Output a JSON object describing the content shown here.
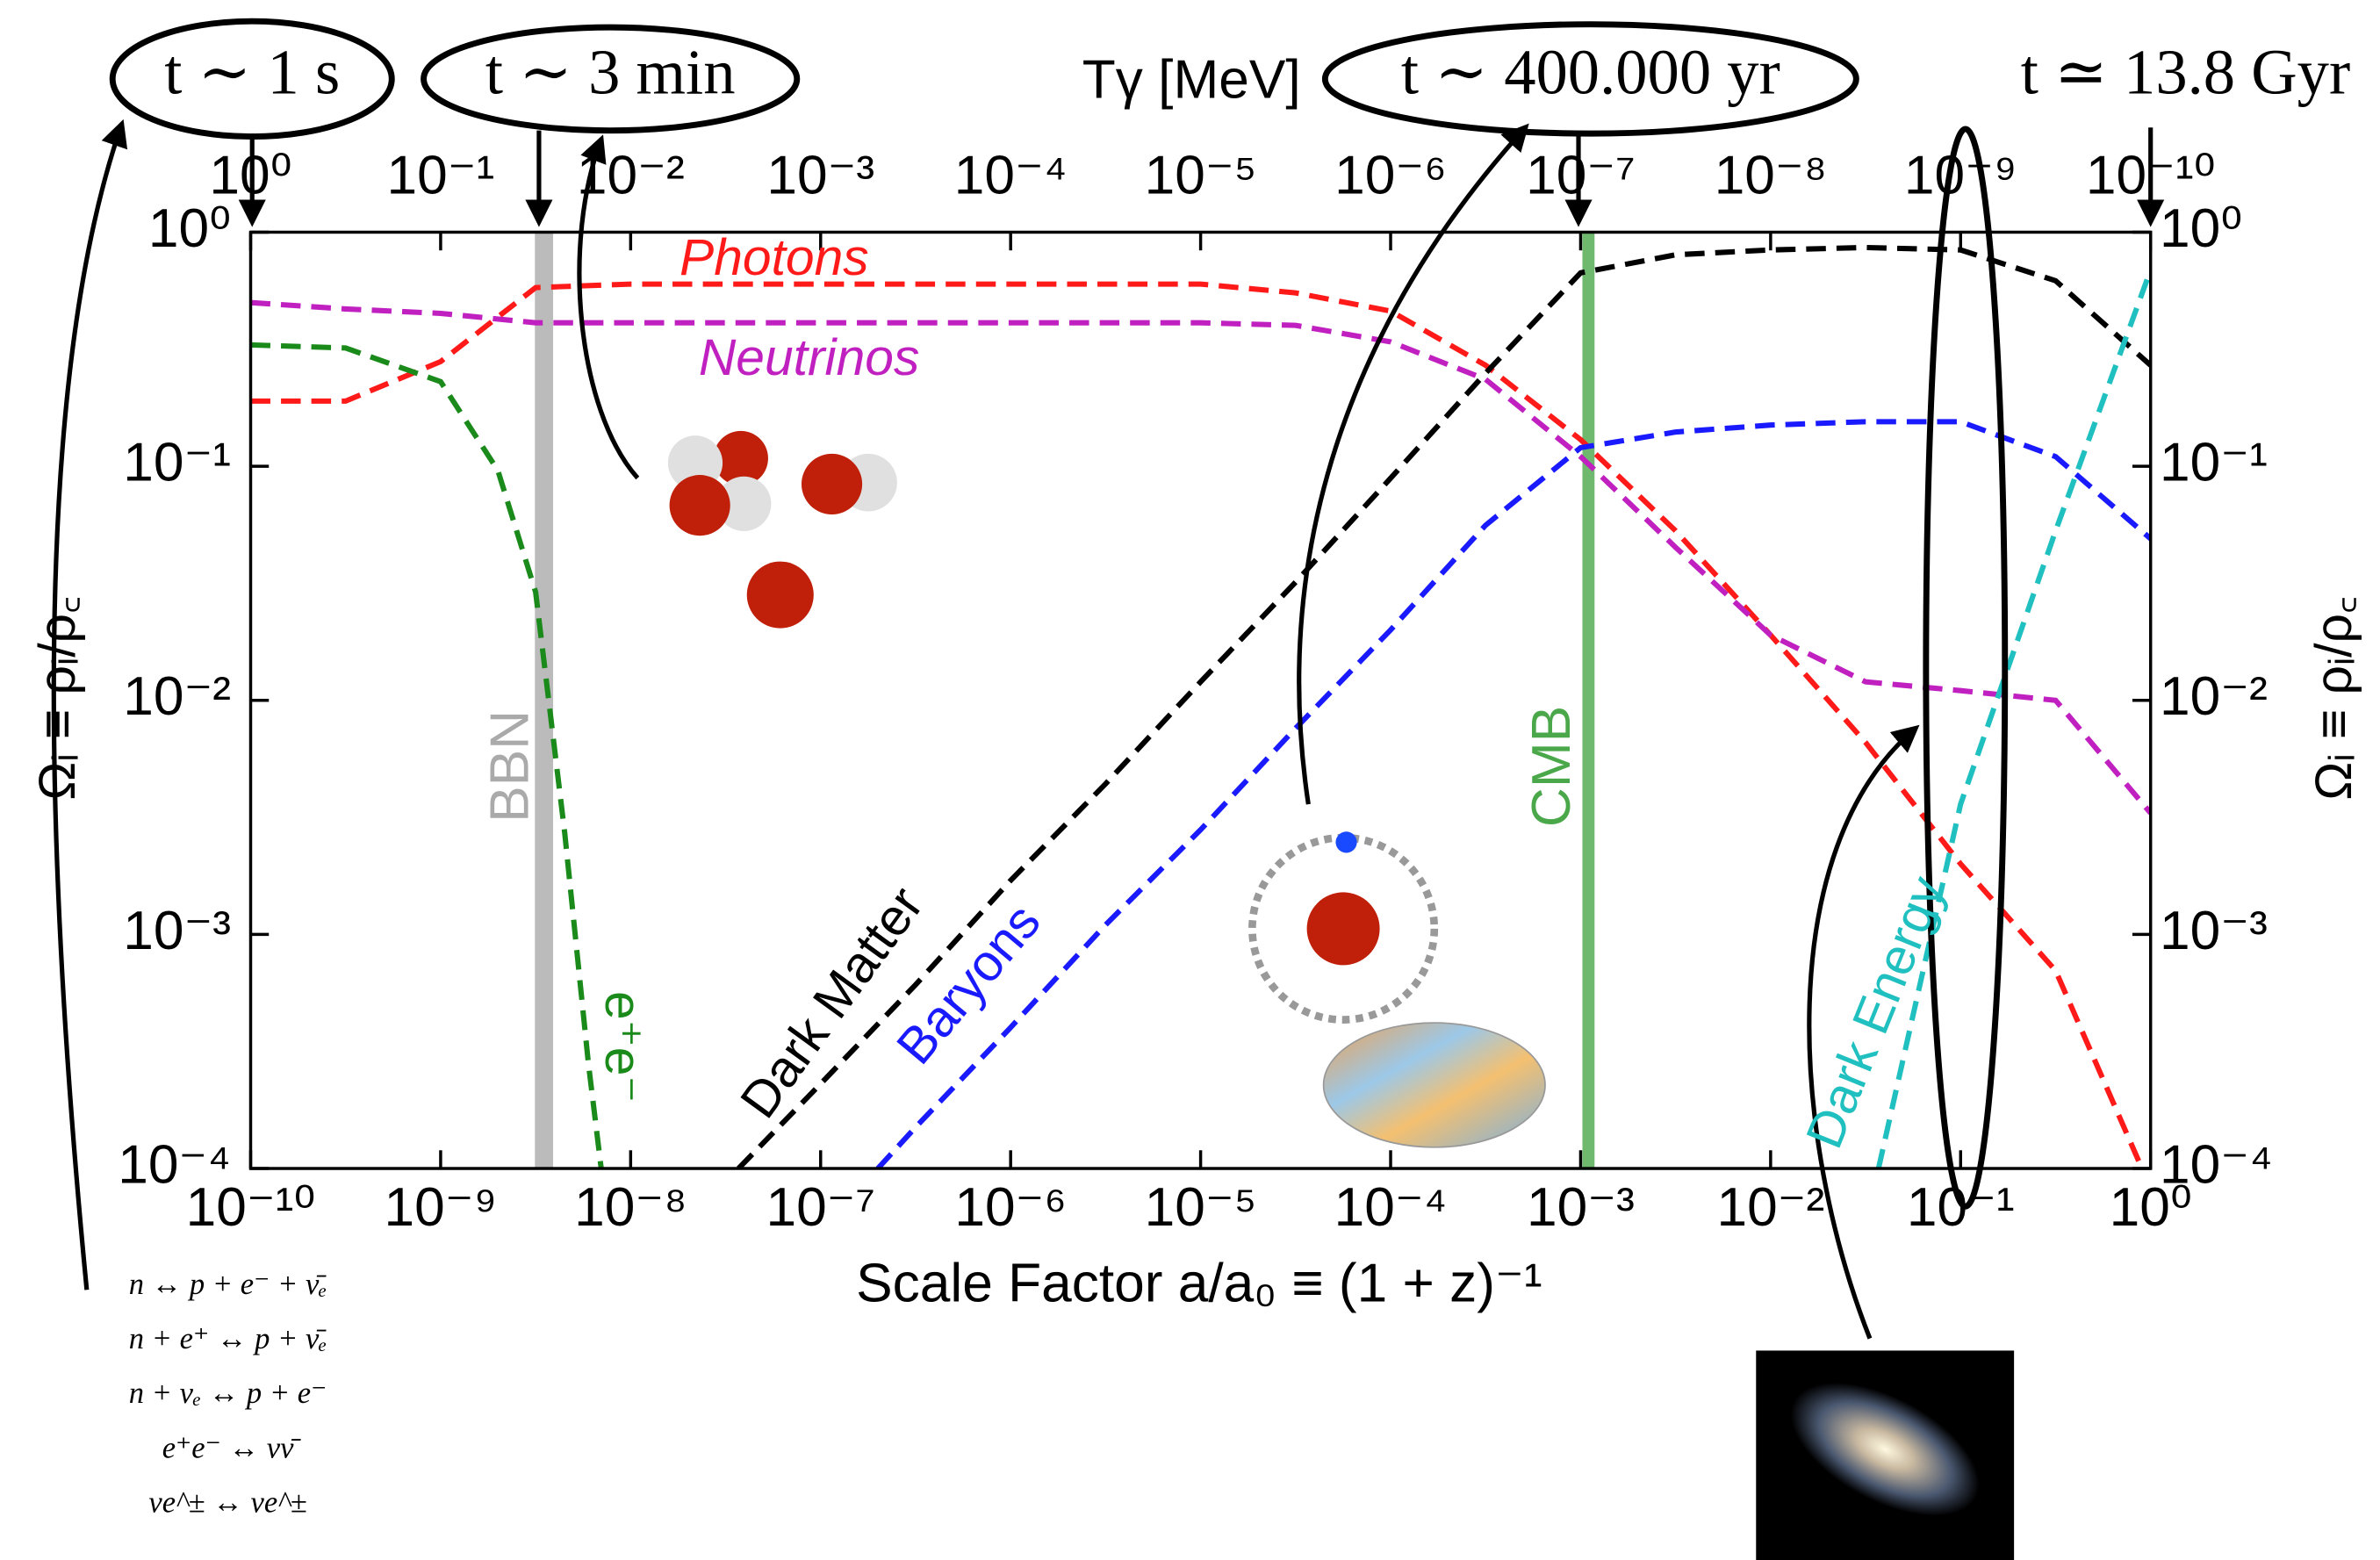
{
  "chart_data": {
    "type": "line",
    "xlabel": "Scale Factor a/a₀ ≡ (1 + z)⁻¹",
    "ylabel": "Ωᵢ ≡ ρᵢ/ρ꜀",
    "x2label": "Tγ [MeV]",
    "log_x": true,
    "log_y": true,
    "xlim": [
      1e-10,
      1
    ],
    "xticks": [
      {
        "value": 1e-10,
        "label": "10⁻¹⁰"
      },
      {
        "value": 1e-09,
        "label": "10⁻⁹"
      },
      {
        "value": 1e-08,
        "label": "10⁻⁸"
      },
      {
        "value": 1e-07,
        "label": "10⁻⁷"
      },
      {
        "value": 1e-06,
        "label": "10⁻⁶"
      },
      {
        "value": 1e-05,
        "label": "10⁻⁵"
      },
      {
        "value": 0.0001,
        "label": "10⁻⁴"
      },
      {
        "value": 0.001,
        "label": "10⁻³"
      },
      {
        "value": 0.01,
        "label": "10⁻²"
      },
      {
        "value": 0.1,
        "label": "10⁻¹"
      },
      {
        "value": 1,
        "label": "10⁰"
      }
    ],
    "x2lim": [
      1,
      1e-10
    ],
    "x2ticks": [
      {
        "value": 1,
        "label": "10⁰"
      },
      {
        "value": 0.1,
        "label": "10⁻¹"
      },
      {
        "value": 0.01,
        "label": "10⁻²"
      },
      {
        "value": 0.001,
        "label": "10⁻³"
      },
      {
        "value": 0.0001,
        "label": "10⁻⁴"
      },
      {
        "value": 1e-05,
        "label": "10⁻⁵"
      },
      {
        "value": 1e-06,
        "label": "10⁻⁶"
      },
      {
        "value": 1e-07,
        "label": "10⁻⁷"
      },
      {
        "value": 1e-08,
        "label": "10⁻⁸"
      },
      {
        "value": 1e-09,
        "label": "10⁻⁹"
      },
      {
        "value": 1e-10,
        "label": "10⁻¹⁰"
      }
    ],
    "ylim": [
      0.0001,
      1
    ],
    "yticks": [
      {
        "value": 0.0001,
        "label": "10⁻⁴"
      },
      {
        "value": 0.001,
        "label": "10⁻³"
      },
      {
        "value": 0.01,
        "label": "10⁻²"
      },
      {
        "value": 0.1,
        "label": "10⁻¹"
      },
      {
        "value": 1,
        "label": "10⁰"
      }
    ],
    "series": [
      {
        "name": "Photons",
        "color": "#ff1a1a",
        "x": [
          1e-10,
          3.16e-10,
          1e-09,
          3.16e-09,
          1e-08,
          3.16e-08,
          1e-07,
          3.16e-07,
          1e-06,
          3.16e-06,
          1e-05,
          3.16e-05,
          0.0001,
          0.000316,
          0.001,
          0.00316,
          0.01,
          0.0316,
          0.1,
          0.316,
          0.9
        ],
        "values": [
          0.19,
          0.19,
          0.28,
          0.58,
          0.6,
          0.6,
          0.6,
          0.6,
          0.6,
          0.6,
          0.6,
          0.55,
          0.46,
          0.27,
          0.13,
          0.053,
          0.019,
          0.0066,
          0.002,
          0.0007,
          0.0001
        ]
      },
      {
        "name": "Neutrinos",
        "color": "#c020c0",
        "x": [
          1e-10,
          3.16e-10,
          1e-09,
          3.16e-09,
          1e-08,
          3.16e-08,
          1e-07,
          3.16e-07,
          1e-06,
          3.16e-06,
          1e-05,
          3.16e-05,
          0.0001,
          0.000316,
          0.001,
          0.00316,
          0.01,
          0.0316,
          0.1,
          0.316,
          1
        ],
        "values": [
          0.5,
          0.47,
          0.45,
          0.41,
          0.41,
          0.41,
          0.41,
          0.41,
          0.41,
          0.41,
          0.41,
          0.4,
          0.34,
          0.235,
          0.11,
          0.045,
          0.019,
          0.012,
          0.011,
          0.01,
          0.0033
        ]
      },
      {
        "name": "e⁺e⁻",
        "color": "#1a8a1a",
        "x": [
          1e-10,
          3.16e-10,
          1e-09,
          2e-09,
          3.16e-09,
          4.5e-09,
          6e-09,
          7e-09
        ],
        "values": [
          0.33,
          0.32,
          0.23,
          0.096,
          0.029,
          0.0027,
          0.00028,
          0.0001
        ]
      },
      {
        "name": "Dark Matter",
        "color": "#000000",
        "x": [
          3.7e-08,
          1e-07,
          3.16e-07,
          1e-06,
          3.16e-06,
          1e-05,
          3.16e-05,
          0.0001,
          0.000316,
          0.001,
          0.00316,
          0.01,
          0.0316,
          0.1,
          0.316,
          1
        ],
        "values": [
          0.0001,
          0.00023,
          0.00061,
          0.0017,
          0.0044,
          0.012,
          0.032,
          0.089,
          0.25,
          0.67,
          0.8,
          0.84,
          0.86,
          0.84,
          0.62,
          0.27
        ]
      },
      {
        "name": "Baryons",
        "color": "#1a1aff",
        "x": [
          2e-07,
          3.16e-07,
          1e-06,
          3.16e-06,
          1e-05,
          3.16e-05,
          0.0001,
          0.000316,
          0.001,
          0.00316,
          0.01,
          0.0316,
          0.1,
          0.316,
          1
        ],
        "values": [
          0.0001,
          0.00015,
          0.0004,
          0.0011,
          0.0028,
          0.0076,
          0.02,
          0.056,
          0.12,
          0.14,
          0.15,
          0.155,
          0.155,
          0.11,
          0.049
        ]
      },
      {
        "name": "Dark Energy",
        "color": "#20c0c0",
        "x": [
          0.037,
          0.1,
          0.316,
          1
        ],
        "values": [
          0.0001,
          0.0036,
          0.053,
          0.69
        ]
      }
    ],
    "bands": [
      {
        "label": "BBN",
        "x": 3.5e-09,
        "color": "#aaaaaa"
      },
      {
        "label": "CMB",
        "x": 0.0011,
        "color": "#4aa84a"
      }
    ],
    "annotations": [
      "t ∼ 1 s",
      "t ∼ 3 min",
      "t ∼ 400.000 yr",
      "t ≃ 13.8 Gyr"
    ],
    "reactions": [
      "n ↔ p + e⁻ + ν̄ₑ",
      "n + e⁺ ↔ p + ν̄ₑ",
      "n + νₑ ↔ p + e⁻",
      "e⁺e⁻ ↔ νν̄",
      "νe^± ↔ νe^±"
    ]
  }
}
